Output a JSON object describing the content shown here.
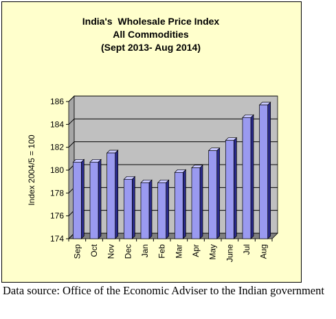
{
  "chart_data": {
    "type": "bar",
    "title_lines": [
      "India's  Wholesale Price Index",
      "All Commodities",
      "(Sept 2013- Aug 2014)"
    ],
    "xlabel": "",
    "ylabel": "Index 2004/5 = 100",
    "categories": [
      "Sep",
      "Oct",
      "Nov",
      "Dec",
      "Jan",
      "Feb",
      "Mar",
      "Apr",
      "May",
      "June",
      "Jul",
      "Aug"
    ],
    "values": [
      180.7,
      180.7,
      181.5,
      179.2,
      178.9,
      178.9,
      179.8,
      180.2,
      181.7,
      182.6,
      184.6,
      185.7
    ],
    "ylim": [
      174,
      186
    ],
    "yticks": [
      "174",
      "176",
      "178",
      "180",
      "182",
      "184",
      "186"
    ],
    "grid": true,
    "colors": {
      "bar_front": "#9a9af0",
      "bar_side": "#2a2a8a",
      "bar_top": "#c8c8ff",
      "plot_back": "#c0c0c0",
      "plot_floor": "#808080",
      "plot_wall": "#a6a6a6",
      "frame_bg": "#ffffcc"
    }
  },
  "caption": "Data source: Office of the Economic Adviser to the Indian government"
}
